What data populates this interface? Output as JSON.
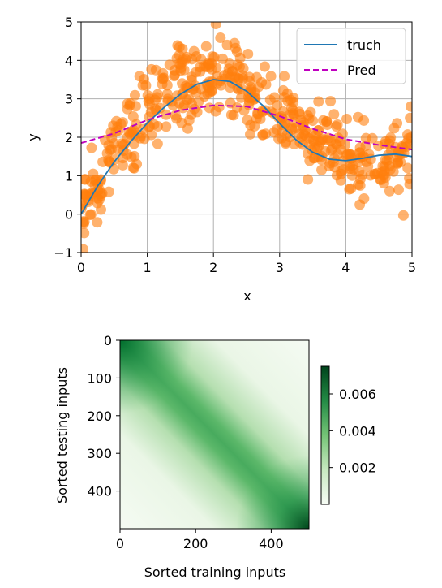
{
  "chart_data": [
    {
      "type": "scatter",
      "xlabel": "x",
      "ylabel": "y",
      "xlim": [
        0,
        5
      ],
      "ylim": [
        -1,
        5
      ],
      "xticks": [
        "0",
        "1",
        "2",
        "3",
        "4",
        "5"
      ],
      "yticks": [
        "−1",
        "0",
        "1",
        "2",
        "3",
        "4",
        "5"
      ],
      "grid": true,
      "legend_position": "top-right",
      "series": [
        {
          "name": "truch",
          "kind": "line",
          "color": "#1f77b4",
          "x": [
            0,
            0.25,
            0.5,
            0.75,
            1.0,
            1.25,
            1.5,
            1.75,
            2.0,
            2.25,
            2.5,
            2.75,
            3.0,
            3.25,
            3.5,
            3.75,
            4.0,
            4.25,
            4.5,
            4.75,
            5.0
          ],
          "y": [
            0.0,
            0.73,
            1.36,
            1.89,
            2.37,
            2.77,
            3.12,
            3.38,
            3.5,
            3.45,
            3.2,
            2.82,
            2.36,
            1.93,
            1.61,
            1.43,
            1.39,
            1.45,
            1.53,
            1.56,
            1.5
          ]
        },
        {
          "name": "Pred",
          "kind": "line",
          "style": "dashed",
          "color": "#bf00bf",
          "x": [
            0,
            0.5,
            1.0,
            1.5,
            2.0,
            2.5,
            3.0,
            3.5,
            4.0,
            4.5,
            5.0
          ],
          "y": [
            1.85,
            2.1,
            2.45,
            2.7,
            2.83,
            2.8,
            2.55,
            2.22,
            1.95,
            1.8,
            1.68
          ]
        },
        {
          "name": "",
          "kind": "points",
          "color": "#ff7f0e",
          "alpha": 0.6,
          "count": 500,
          "generator": "y = 2*sin(x) + x^0.8 + noise(0.5)"
        }
      ]
    },
    {
      "type": "heatmap",
      "xlabel": "Sorted training inputs",
      "ylabel": "Sorted testing inputs",
      "xlim": [
        0,
        500
      ],
      "ylim": [
        0,
        500
      ],
      "xticks": [
        "0",
        "200",
        "400"
      ],
      "yticks": [
        "0",
        "100",
        "200",
        "300",
        "400"
      ],
      "colormap": "Greens",
      "colorbar": {
        "range": [
          0.0,
          0.0075
        ],
        "ticks": [
          "0.002",
          "0.004",
          "0.006"
        ]
      },
      "pattern": "diagonal band, darkest at top-left and bottom-right corners"
    }
  ]
}
